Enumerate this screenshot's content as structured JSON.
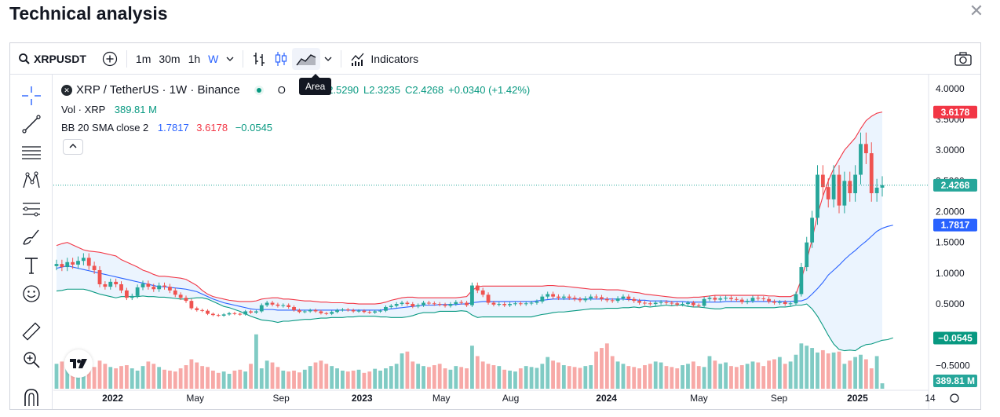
{
  "page": {
    "title": "Technical analysis"
  },
  "toolbar": {
    "symbol": "XRPUSDT",
    "intervals": [
      "1m",
      "30m",
      "1h",
      "W"
    ],
    "active_interval": "W",
    "indicators_label": "Indicators",
    "tooltip": "Area"
  },
  "legend": {
    "title": "XRP / TetherUS · 1W · Binance",
    "open_prefix": "O",
    "high": "H2.5290",
    "low": "L2.3235",
    "close": "C2.4268",
    "change": "+0.0340 (+1.42%)",
    "vol_label": "Vol · XRP",
    "vol_value": "389.81 M",
    "bb_label": "BB 20 SMA close 2",
    "bb_basis": "1.7817",
    "bb_upper": "3.6178",
    "bb_lower": "−0.0545"
  },
  "price_badges": {
    "upper": "3.6178",
    "last": "2.4268",
    "basis": "1.7817",
    "lower": "−0.0545",
    "volume": "389.81 M"
  },
  "colors": {
    "up": "#26a69a",
    "down": "#ef5350",
    "basis": "#2962ff",
    "upper": "#f23645",
    "lower": "#089981",
    "fill": "#e3effd"
  },
  "chart_data": {
    "type": "candlestick",
    "title": "XRP / TetherUS · 1W · Binance",
    "y_ticks": [
      "4.0000",
      "3.5000",
      "3.0000",
      "2.5000",
      "2.0000",
      "1.5000",
      "1.0000",
      "0.5000",
      "−0.5000"
    ],
    "ylim": [
      -0.75,
      4.1
    ],
    "x_ticks": [
      "2022",
      "May",
      "Sep",
      "2023",
      "May",
      "Aug",
      "2024",
      "May",
      "Sep",
      "2025",
      "14"
    ],
    "closes": [
      1.15,
      1.1,
      1.18,
      1.14,
      1.2,
      1.25,
      1.12,
      1.05,
      0.82,
      0.78,
      0.86,
      0.82,
      0.72,
      0.6,
      0.63,
      0.77,
      0.83,
      0.78,
      0.74,
      0.8,
      0.78,
      0.72,
      0.65,
      0.6,
      0.55,
      0.43,
      0.4,
      0.39,
      0.34,
      0.32,
      0.31,
      0.33,
      0.35,
      0.34,
      0.33,
      0.38,
      0.36,
      0.38,
      0.48,
      0.52,
      0.49,
      0.47,
      0.48,
      0.45,
      0.4,
      0.37,
      0.38,
      0.4,
      0.38,
      0.35,
      0.34,
      0.37,
      0.4,
      0.41,
      0.4,
      0.38,
      0.39,
      0.37,
      0.36,
      0.38,
      0.39,
      0.45,
      0.47,
      0.5,
      0.52,
      0.5,
      0.46,
      0.48,
      0.52,
      0.51,
      0.5,
      0.49,
      0.47,
      0.5,
      0.53,
      0.52,
      0.48,
      0.8,
      0.72,
      0.65,
      0.52,
      0.49,
      0.5,
      0.48,
      0.5,
      0.51,
      0.5,
      0.51,
      0.52,
      0.54,
      0.62,
      0.66,
      0.62,
      0.6,
      0.62,
      0.6,
      0.58,
      0.56,
      0.59,
      0.62,
      0.61,
      0.58,
      0.56,
      0.55,
      0.59,
      0.62,
      0.58,
      0.55,
      0.52,
      0.51,
      0.5,
      0.52,
      0.53,
      0.52,
      0.51,
      0.49,
      0.5,
      0.52,
      0.48,
      0.47,
      0.58,
      0.6,
      0.57,
      0.59,
      0.6,
      0.58,
      0.57,
      0.53,
      0.55,
      0.6,
      0.59,
      0.58,
      0.54,
      0.52,
      0.53,
      0.5,
      0.51,
      0.66,
      1.1,
      1.5,
      1.9,
      2.6,
      2.4,
      2.2,
      2.6,
      2.1,
      2.5,
      2.3,
      2.6,
      3.1,
      2.95,
      2.3,
      2.39,
      2.43
    ],
    "volumes": [
      0.55,
      0.6,
      0.5,
      0.45,
      0.4,
      0.55,
      0.5,
      0.48,
      0.62,
      0.55,
      0.48,
      0.45,
      0.5,
      0.52,
      0.45,
      0.4,
      0.5,
      0.6,
      0.55,
      0.48,
      0.42,
      0.4,
      0.38,
      0.45,
      0.52,
      0.65,
      0.58,
      0.5,
      0.48,
      0.4,
      0.35,
      0.38,
      0.33,
      0.4,
      0.42,
      0.38,
      0.55,
      1.2,
      0.45,
      0.62,
      0.58,
      0.48,
      0.4,
      0.38,
      0.4,
      0.36,
      0.42,
      0.5,
      0.58,
      0.62,
      0.55,
      0.5,
      0.45,
      0.4,
      0.38,
      0.4,
      0.42,
      0.35,
      0.38,
      0.44,
      0.4,
      0.45,
      0.5,
      0.55,
      0.78,
      0.82,
      0.6,
      0.55,
      0.5,
      0.48,
      0.52,
      0.55,
      0.45,
      0.42,
      0.5,
      0.48,
      0.45,
      0.95,
      0.72,
      0.6,
      0.55,
      0.52,
      0.5,
      0.42,
      0.4,
      0.38,
      0.45,
      0.5,
      0.48,
      0.46,
      0.55,
      0.7,
      0.62,
      0.58,
      0.52,
      0.5,
      0.48,
      0.46,
      0.5,
      0.52,
      0.82,
      0.9,
      1.0,
      0.72,
      0.6,
      0.55,
      0.5,
      0.48,
      0.45,
      0.52,
      0.55,
      0.6,
      0.58,
      0.5,
      0.48,
      0.45,
      0.52,
      0.55,
      0.6,
      0.5,
      0.48,
      0.72,
      0.62,
      0.55,
      0.58,
      0.5,
      0.48,
      0.52,
      0.55,
      0.6,
      0.58,
      0.5,
      0.62,
      0.65,
      0.7,
      0.55,
      0.6,
      0.75,
      1.0,
      0.95,
      0.9,
      0.8,
      0.85,
      0.78,
      0.8,
      0.82,
      0.55,
      0.62,
      0.7,
      0.75,
      0.65,
      0.45,
      0.72,
      0.12
    ],
    "bb_upper": [
      1.45,
      1.48,
      1.5,
      1.46,
      1.42,
      1.38,
      1.36,
      1.35,
      1.34,
      1.32,
      1.3,
      1.28,
      1.22,
      1.18,
      1.14,
      1.1,
      1.05,
      1.02,
      0.98,
      0.95,
      0.95,
      0.94,
      0.93,
      0.92,
      0.9,
      0.85,
      0.8,
      0.72,
      0.66,
      0.62,
      0.6,
      0.58,
      0.56,
      0.55,
      0.54,
      0.54,
      0.54,
      0.55,
      0.58,
      0.59,
      0.6,
      0.6,
      0.58,
      0.58,
      0.57,
      0.56,
      0.55,
      0.55,
      0.54,
      0.53,
      0.53,
      0.52,
      0.52,
      0.52,
      0.51,
      0.51,
      0.5,
      0.5,
      0.5,
      0.5,
      0.51,
      0.53,
      0.56,
      0.58,
      0.6,
      0.61,
      0.61,
      0.6,
      0.6,
      0.6,
      0.6,
      0.6,
      0.6,
      0.6,
      0.6,
      0.61,
      0.62,
      0.72,
      0.78,
      0.79,
      0.79,
      0.79,
      0.79,
      0.79,
      0.79,
      0.79,
      0.79,
      0.79,
      0.79,
      0.79,
      0.79,
      0.8,
      0.8,
      0.79,
      0.79,
      0.78,
      0.77,
      0.76,
      0.75,
      0.74,
      0.74,
      0.74,
      0.73,
      0.73,
      0.73,
      0.72,
      0.7,
      0.69,
      0.68,
      0.66,
      0.65,
      0.64,
      0.63,
      0.62,
      0.61,
      0.6,
      0.6,
      0.6,
      0.61,
      0.61,
      0.62,
      0.63,
      0.64,
      0.64,
      0.64,
      0.64,
      0.64,
      0.64,
      0.64,
      0.64,
      0.64,
      0.64,
      0.63,
      0.63,
      0.62,
      0.62,
      0.62,
      0.66,
      0.9,
      1.2,
      1.55,
      1.95,
      2.25,
      2.5,
      2.7,
      2.85,
      3.0,
      3.1,
      3.2,
      3.35,
      3.48,
      3.55,
      3.6,
      3.62
    ],
    "bb_basis": [
      1.08,
      1.1,
      1.12,
      1.1,
      1.08,
      1.06,
      1.04,
      1.02,
      1.0,
      0.98,
      0.96,
      0.94,
      0.92,
      0.9,
      0.88,
      0.86,
      0.84,
      0.82,
      0.8,
      0.78,
      0.78,
      0.77,
      0.76,
      0.75,
      0.74,
      0.72,
      0.7,
      0.66,
      0.62,
      0.58,
      0.55,
      0.52,
      0.5,
      0.48,
      0.46,
      0.44,
      0.42,
      0.41,
      0.41,
      0.41,
      0.41,
      0.4,
      0.4,
      0.4,
      0.4,
      0.4,
      0.4,
      0.4,
      0.4,
      0.4,
      0.4,
      0.4,
      0.4,
      0.4,
      0.4,
      0.4,
      0.4,
      0.4,
      0.4,
      0.4,
      0.4,
      0.41,
      0.42,
      0.43,
      0.44,
      0.45,
      0.46,
      0.47,
      0.48,
      0.48,
      0.48,
      0.49,
      0.49,
      0.49,
      0.49,
      0.5,
      0.5,
      0.52,
      0.53,
      0.54,
      0.54,
      0.54,
      0.54,
      0.54,
      0.54,
      0.54,
      0.54,
      0.54,
      0.54,
      0.55,
      0.56,
      0.57,
      0.58,
      0.58,
      0.58,
      0.58,
      0.58,
      0.58,
      0.58,
      0.58,
      0.58,
      0.58,
      0.58,
      0.58,
      0.58,
      0.58,
      0.57,
      0.57,
      0.56,
      0.56,
      0.55,
      0.55,
      0.55,
      0.55,
      0.54,
      0.54,
      0.54,
      0.53,
      0.53,
      0.53,
      0.53,
      0.53,
      0.53,
      0.53,
      0.54,
      0.54,
      0.54,
      0.54,
      0.54,
      0.54,
      0.54,
      0.54,
      0.54,
      0.54,
      0.54,
      0.54,
      0.54,
      0.55,
      0.55,
      0.58,
      0.66,
      0.75,
      0.85,
      0.97,
      1.05,
      1.13,
      1.22,
      1.3,
      1.37,
      1.45,
      1.52,
      1.6,
      1.68,
      1.73,
      1.76,
      1.78
    ],
    "bb_lower": [
      0.71,
      0.72,
      0.74,
      0.74,
      0.74,
      0.74,
      0.72,
      0.69,
      0.66,
      0.64,
      0.62,
      0.6,
      0.62,
      0.62,
      0.62,
      0.62,
      0.63,
      0.62,
      0.62,
      0.61,
      0.61,
      0.6,
      0.59,
      0.58,
      0.58,
      0.59,
      0.6,
      0.6,
      0.58,
      0.54,
      0.5,
      0.46,
      0.44,
      0.41,
      0.38,
      0.34,
      0.3,
      0.27,
      0.24,
      0.23,
      0.22,
      0.2,
      0.22,
      0.22,
      0.23,
      0.24,
      0.25,
      0.25,
      0.26,
      0.27,
      0.27,
      0.28,
      0.28,
      0.28,
      0.29,
      0.29,
      0.3,
      0.3,
      0.3,
      0.3,
      0.29,
      0.29,
      0.28,
      0.28,
      0.28,
      0.29,
      0.31,
      0.34,
      0.36,
      0.36,
      0.36,
      0.38,
      0.38,
      0.38,
      0.38,
      0.39,
      0.38,
      0.32,
      0.28,
      0.29,
      0.29,
      0.29,
      0.29,
      0.29,
      0.29,
      0.29,
      0.29,
      0.29,
      0.29,
      0.31,
      0.33,
      0.34,
      0.36,
      0.37,
      0.37,
      0.38,
      0.39,
      0.4,
      0.41,
      0.42,
      0.42,
      0.42,
      0.43,
      0.43,
      0.43,
      0.44,
      0.44,
      0.45,
      0.44,
      0.46,
      0.45,
      0.46,
      0.47,
      0.48,
      0.47,
      0.48,
      0.48,
      0.46,
      0.45,
      0.45,
      0.44,
      0.43,
      0.42,
      0.42,
      0.44,
      0.44,
      0.44,
      0.44,
      0.44,
      0.44,
      0.44,
      0.44,
      0.44,
      0.44,
      0.45,
      0.45,
      0.46,
      0.48,
      0.48,
      0.5,
      0.42,
      0.3,
      0.15,
      -0.01,
      -0.15,
      -0.24,
      -0.26,
      -0.25,
      -0.26,
      -0.2,
      -0.16,
      -0.15,
      -0.12,
      -0.09,
      -0.08,
      -0.05
    ]
  }
}
